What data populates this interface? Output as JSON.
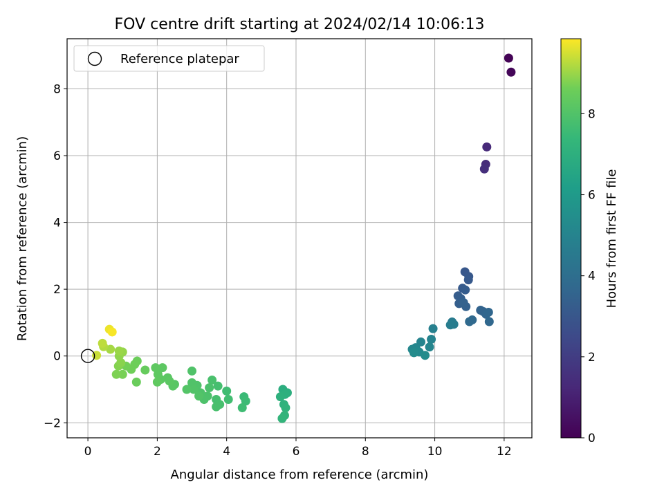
{
  "chart_data": {
    "type": "scatter",
    "title": "FOV centre drift starting at 2024/02/14 10:06:13",
    "xlabel": "Angular distance from reference (arcmin)",
    "ylabel": "Rotation from reference (arcmin)",
    "xlim": [
      -0.6,
      12.8
    ],
    "ylim": [
      -2.45,
      9.5
    ],
    "xticks": [
      0,
      2,
      4,
      6,
      8,
      10,
      12
    ],
    "yticks": [
      -2,
      0,
      2,
      4,
      6,
      8
    ],
    "xtick_labels": [
      "0",
      "2",
      "4",
      "6",
      "8",
      "10",
      "12"
    ],
    "ytick_labels": [
      "−2",
      "0",
      "2",
      "4",
      "6",
      "8"
    ],
    "grid": true,
    "legend": {
      "position": "top-left",
      "label": "Reference platepar"
    },
    "reference_point": {
      "x": 0,
      "y": 0
    },
    "colorbar": {
      "label": "Hours from first FF file",
      "colormap": "viridis",
      "range": [
        0,
        9.85
      ],
      "ticks": [
        0,
        2,
        4,
        6,
        8
      ],
      "tick_labels": [
        "0",
        "2",
        "4",
        "6",
        "8"
      ]
    },
    "points": [
      {
        "x": 12.13,
        "y": 8.92,
        "c": 0.05
      },
      {
        "x": 12.2,
        "y": 8.5,
        "c": 0.15
      },
      {
        "x": 11.5,
        "y": 6.26,
        "c": 1.3
      },
      {
        "x": 11.47,
        "y": 5.74,
        "c": 1.4
      },
      {
        "x": 11.43,
        "y": 5.6,
        "c": 1.5
      },
      {
        "x": 10.87,
        "y": 2.52,
        "c": 3.0
      },
      {
        "x": 10.98,
        "y": 2.38,
        "c": 3.05
      },
      {
        "x": 10.97,
        "y": 2.28,
        "c": 3.1
      },
      {
        "x": 10.8,
        "y": 2.03,
        "c": 3.15
      },
      {
        "x": 10.88,
        "y": 1.98,
        "c": 3.2
      },
      {
        "x": 10.67,
        "y": 1.8,
        "c": 3.25
      },
      {
        "x": 10.75,
        "y": 1.72,
        "c": 3.3
      },
      {
        "x": 10.7,
        "y": 1.57,
        "c": 3.35
      },
      {
        "x": 10.9,
        "y": 1.48,
        "c": 3.4
      },
      {
        "x": 10.83,
        "y": 1.6,
        "c": 3.45
      },
      {
        "x": 11.32,
        "y": 1.37,
        "c": 3.5
      },
      {
        "x": 11.4,
        "y": 1.33,
        "c": 3.55
      },
      {
        "x": 11.48,
        "y": 1.25,
        "c": 3.6
      },
      {
        "x": 11.55,
        "y": 1.31,
        "c": 3.65
      },
      {
        "x": 11.57,
        "y": 1.03,
        "c": 3.7
      },
      {
        "x": 11.08,
        "y": 1.08,
        "c": 3.75
      },
      {
        "x": 11.0,
        "y": 1.03,
        "c": 3.8
      },
      {
        "x": 10.5,
        "y": 1.02,
        "c": 4.6
      },
      {
        "x": 10.55,
        "y": 0.95,
        "c": 4.65
      },
      {
        "x": 10.45,
        "y": 0.93,
        "c": 4.7
      },
      {
        "x": 9.95,
        "y": 0.82,
        "c": 4.85
      },
      {
        "x": 9.9,
        "y": 0.5,
        "c": 4.95
      },
      {
        "x": 9.6,
        "y": 0.42,
        "c": 5.0
      },
      {
        "x": 9.85,
        "y": 0.27,
        "c": 5.05
      },
      {
        "x": 9.45,
        "y": 0.25,
        "c": 5.1
      },
      {
        "x": 9.35,
        "y": 0.2,
        "c": 5.15
      },
      {
        "x": 9.5,
        "y": 0.15,
        "c": 5.2
      },
      {
        "x": 9.55,
        "y": 0.12,
        "c": 5.25
      },
      {
        "x": 9.4,
        "y": 0.1,
        "c": 5.3
      },
      {
        "x": 9.72,
        "y": 0.02,
        "c": 5.35
      },
      {
        "x": 5.62,
        "y": -1.0,
        "c": 6.9
      },
      {
        "x": 5.75,
        "y": -1.1,
        "c": 6.95
      },
      {
        "x": 5.68,
        "y": -1.15,
        "c": 7.0
      },
      {
        "x": 5.55,
        "y": -1.22,
        "c": 7.05
      },
      {
        "x": 5.65,
        "y": -1.45,
        "c": 7.1
      },
      {
        "x": 5.7,
        "y": -1.55,
        "c": 7.15
      },
      {
        "x": 5.67,
        "y": -1.78,
        "c": 7.2
      },
      {
        "x": 5.6,
        "y": -1.87,
        "c": 7.25
      },
      {
        "x": 4.5,
        "y": -1.22,
        "c": 7.5
      },
      {
        "x": 4.55,
        "y": -1.35,
        "c": 7.55
      },
      {
        "x": 4.45,
        "y": -1.55,
        "c": 7.6
      },
      {
        "x": 4.0,
        "y": -1.05,
        "c": 7.65
      },
      {
        "x": 4.05,
        "y": -1.3,
        "c": 7.7
      },
      {
        "x": 3.75,
        "y": -0.9,
        "c": 7.75
      },
      {
        "x": 3.7,
        "y": -1.3,
        "c": 7.78
      },
      {
        "x": 3.8,
        "y": -1.45,
        "c": 7.8
      },
      {
        "x": 3.7,
        "y": -1.52,
        "c": 7.82
      },
      {
        "x": 3.58,
        "y": -0.72,
        "c": 7.85
      },
      {
        "x": 3.5,
        "y": -0.95,
        "c": 7.88
      },
      {
        "x": 3.45,
        "y": -1.2,
        "c": 7.9
      },
      {
        "x": 3.35,
        "y": -1.3,
        "c": 7.92
      },
      {
        "x": 3.25,
        "y": -1.1,
        "c": 7.94
      },
      {
        "x": 3.15,
        "y": -0.88,
        "c": 7.96
      },
      {
        "x": 3.0,
        "y": -0.45,
        "c": 7.98
      },
      {
        "x": 3.0,
        "y": -0.8,
        "c": 8.0
      },
      {
        "x": 3.05,
        "y": -1.0,
        "c": 8.02
      },
      {
        "x": 3.2,
        "y": -1.2,
        "c": 8.04
      },
      {
        "x": 2.85,
        "y": -1.0,
        "c": 8.06
      },
      {
        "x": 2.5,
        "y": -0.85,
        "c": 8.15
      },
      {
        "x": 2.45,
        "y": -0.9,
        "c": 8.18
      },
      {
        "x": 2.3,
        "y": -0.65,
        "c": 8.2
      },
      {
        "x": 2.35,
        "y": -0.75,
        "c": 8.22
      },
      {
        "x": 2.1,
        "y": -0.7,
        "c": 8.24
      },
      {
        "x": 2.15,
        "y": -0.35,
        "c": 8.26
      },
      {
        "x": 2.02,
        "y": -0.55,
        "c": 8.28
      },
      {
        "x": 1.95,
        "y": -0.35,
        "c": 8.3
      },
      {
        "x": 2.0,
        "y": -0.78,
        "c": 8.32
      },
      {
        "x": 1.65,
        "y": -0.42,
        "c": 8.45
      },
      {
        "x": 1.4,
        "y": -0.78,
        "c": 8.5
      },
      {
        "x": 1.42,
        "y": -0.15,
        "c": 8.55
      },
      {
        "x": 1.35,
        "y": -0.25,
        "c": 8.6
      },
      {
        "x": 1.25,
        "y": -0.4,
        "c": 8.62
      },
      {
        "x": 1.1,
        "y": -0.3,
        "c": 8.65
      },
      {
        "x": 1.0,
        "y": -0.55,
        "c": 8.7
      },
      {
        "x": 0.82,
        "y": -0.55,
        "c": 8.75
      },
      {
        "x": 0.88,
        "y": -0.3,
        "c": 8.8
      },
      {
        "x": 0.95,
        "y": -0.2,
        "c": 8.85
      },
      {
        "x": 0.9,
        "y": 0.0,
        "c": 8.9
      },
      {
        "x": 1.0,
        "y": 0.12,
        "c": 8.95
      },
      {
        "x": 0.9,
        "y": 0.15,
        "c": 9.0
      },
      {
        "x": 0.65,
        "y": 0.2,
        "c": 9.1
      },
      {
        "x": 0.45,
        "y": 0.28,
        "c": 9.2
      },
      {
        "x": 0.42,
        "y": 0.38,
        "c": 9.3
      },
      {
        "x": 0.25,
        "y": 0.02,
        "c": 9.4
      },
      {
        "x": 0.62,
        "y": 0.8,
        "c": 9.7
      },
      {
        "x": 0.7,
        "y": 0.72,
        "c": 9.8
      }
    ]
  }
}
